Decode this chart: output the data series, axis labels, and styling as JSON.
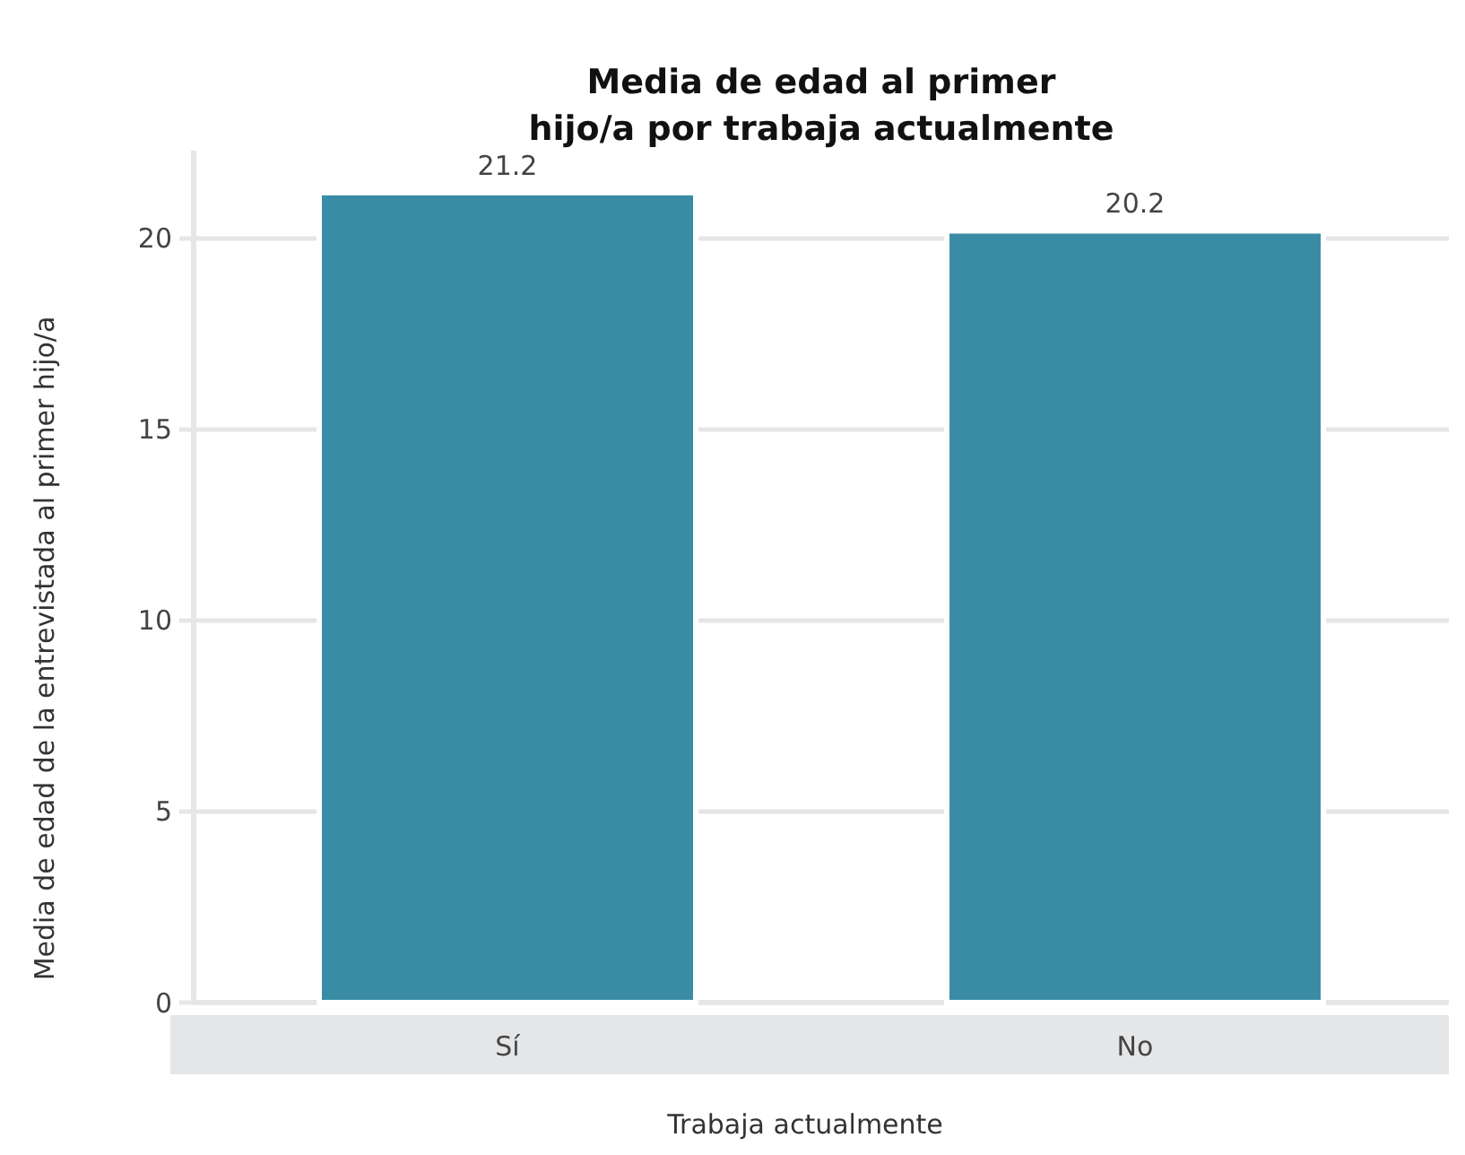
{
  "chart_data": {
    "type": "bar",
    "title": "Media de edad al primer\nhijo/a por trabaja actualmente",
    "xlabel": "Trabaja actualmente",
    "ylabel": "Media de edad de la entrevistada al primer hijo/a",
    "categories": [
      "Sí",
      "No"
    ],
    "values": [
      21.2,
      20.2
    ],
    "color": "#3a8ca6",
    "ylim": [
      0,
      22.3
    ],
    "yticks": [
      0,
      5,
      10,
      15,
      20
    ],
    "grid": "y",
    "data_labels": true
  }
}
